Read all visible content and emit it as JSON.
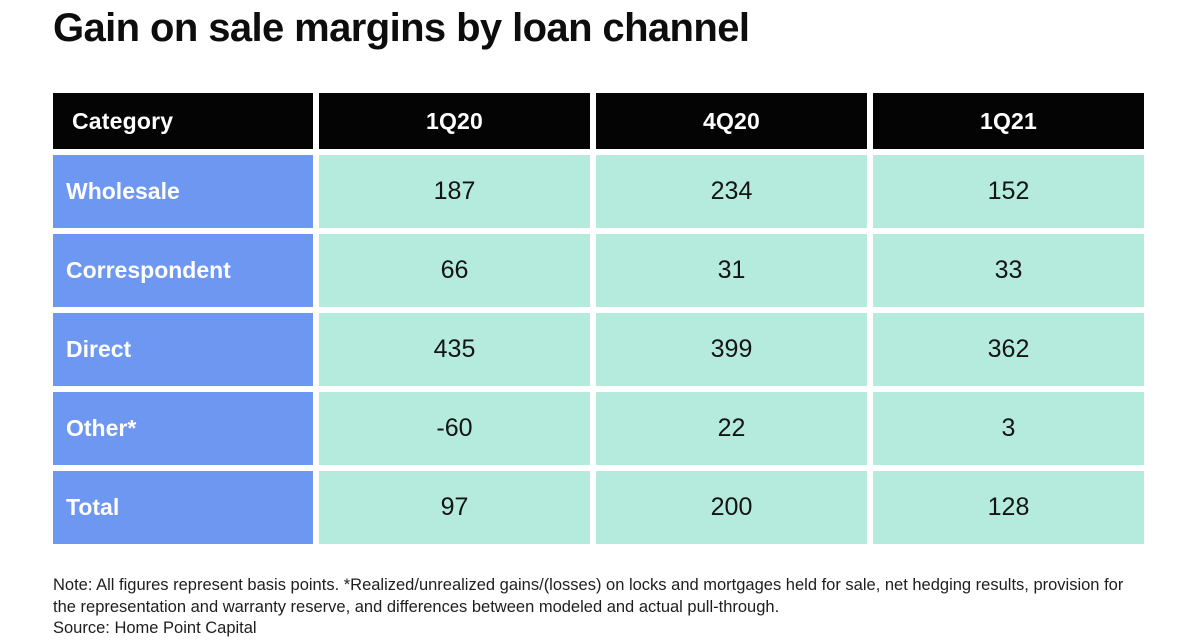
{
  "page": {
    "title": "Gain on sale margins by loan channel",
    "note": "Note: All figures represent basis points. *Realized/unrealized gains/(losses) on locks and mortgages held for sale, net hedging results, provision for the representation and warranty reserve, and differences between modeled and actual pull-through.",
    "source": "Source: Home Point Capital"
  },
  "chart_data": {
    "type": "table",
    "title": "Gain on sale margins by loan channel",
    "columns": [
      "Category",
      "1Q20",
      "4Q20",
      "1Q21"
    ],
    "rows": [
      {
        "label": "Wholesale",
        "values": [
          187,
          234,
          152
        ]
      },
      {
        "label": "Correspondent",
        "values": [
          66,
          31,
          33
        ]
      },
      {
        "label": "Direct",
        "values": [
          435,
          399,
          362
        ]
      },
      {
        "label": "Other*",
        "values": [
          -60,
          22,
          3
        ]
      },
      {
        "label": "Total",
        "values": [
          97,
          200,
          128
        ]
      }
    ],
    "note": "All figures represent basis points.",
    "source": "Home Point Capital"
  },
  "colors": {
    "title_text": "#0d0d0d",
    "header_bg": "#040404",
    "header_text": "#ffffff",
    "label_bg": "#6E97F2",
    "label_text": "#ffffff",
    "value_bg": "#B5EBDD",
    "value_text": "#141414",
    "note_text": "#1e1e1e",
    "page_bg": "#ffffff"
  }
}
